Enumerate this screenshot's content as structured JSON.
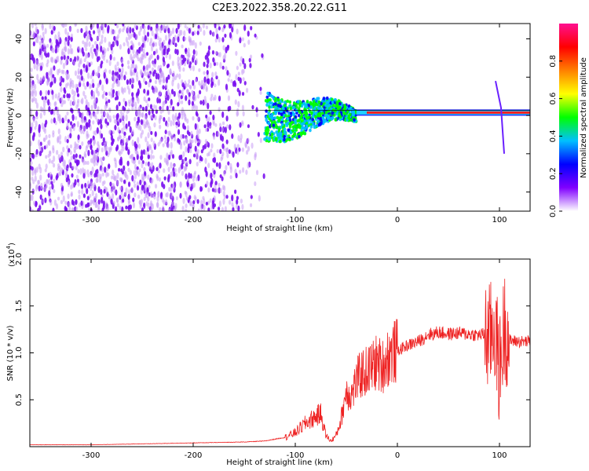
{
  "title": "C2E3.2022.358.20.22.G11",
  "chart_data": [
    {
      "type": "heatmap",
      "xlabel": "Height of straight line (km)",
      "ylabel": "Frequency (Hz)",
      "xlim": [
        -360,
        130
      ],
      "ylim": [
        -50,
        48
      ],
      "x_ticks": [
        -300,
        -200,
        -100,
        0,
        100
      ],
      "x_tick_labels": [
        "-300",
        "-200",
        "-100",
        "0",
        "100"
      ],
      "y_ticks": [
        -40,
        -20,
        0,
        20,
        40
      ],
      "y_tick_labels": [
        "-40",
        "-20",
        "0",
        "20",
        "40"
      ],
      "colorbar": {
        "label": "Normalized spectral amplitude",
        "range": [
          0,
          1
        ],
        "ticks": [
          0.0,
          0.2,
          0.4,
          0.6,
          0.8
        ],
        "tick_labels": [
          "0.0",
          "0.2",
          "0.4",
          "0.6",
          "0.8"
        ],
        "colors": [
          "#ffffff",
          "#8000ff",
          "#0000ff",
          "#00c0ff",
          "#00ff00",
          "#ffff00",
          "#ff8000",
          "#ff0000",
          "#ff1090"
        ]
      },
      "features": {
        "noise_region_x": [
          -360,
          -130
        ],
        "transition_region_x": [
          -130,
          -40
        ],
        "signal_line_frequency": 1.5,
        "signal_line_x": [
          -40,
          130
        ],
        "spike_x": 100
      },
      "grid": false
    },
    {
      "type": "line",
      "xlabel": "Height of straight line (km)",
      "ylabel": "SNR (10 * v/v)",
      "y_multiplier": "(x10",
      "y_multiplier_exp": "4",
      "y_multiplier_close": ")",
      "xlim": [
        -360,
        130
      ],
      "ylim": [
        0,
        2.0
      ],
      "x_ticks": [
        -300,
        -200,
        -100,
        0,
        100
      ],
      "x_tick_labels": [
        "-300",
        "-200",
        "-100",
        "0",
        "100"
      ],
      "y_ticks": [
        0.5,
        1.0,
        1.5,
        2.0
      ],
      "y_tick_labels": [
        "0.5",
        "1.0",
        "1.5",
        "2.0"
      ],
      "series": [
        {
          "color": "#ee2222",
          "x": [
            -360,
            -300,
            -250,
            -200,
            -150,
            -130,
            -110,
            -100,
            -90,
            -80,
            -75,
            -70,
            -65,
            -60,
            -55,
            -50,
            -45,
            -40,
            -35,
            -30,
            -25,
            -20,
            -15,
            -10,
            -5,
            0,
            5,
            10,
            15,
            20,
            25,
            30,
            35,
            40,
            50,
            60,
            70,
            80,
            85,
            90,
            95,
            100,
            105,
            110,
            120,
            130
          ],
          "y": [
            0.02,
            0.02,
            0.03,
            0.04,
            0.05,
            0.06,
            0.1,
            0.15,
            0.25,
            0.32,
            0.35,
            0.12,
            0.06,
            0.12,
            0.3,
            0.6,
            0.55,
            0.7,
            0.78,
            0.8,
            0.85,
            0.9,
            0.85,
            0.95,
            1.0,
            1.02,
            1.05,
            1.08,
            1.1,
            1.12,
            1.15,
            1.2,
            1.2,
            1.22,
            1.2,
            1.21,
            1.2,
            1.19,
            1.2,
            1.15,
            1.3,
            0.8,
            1.3,
            1.13,
            1.12,
            1.12
          ]
        }
      ],
      "grid": false
    }
  ]
}
